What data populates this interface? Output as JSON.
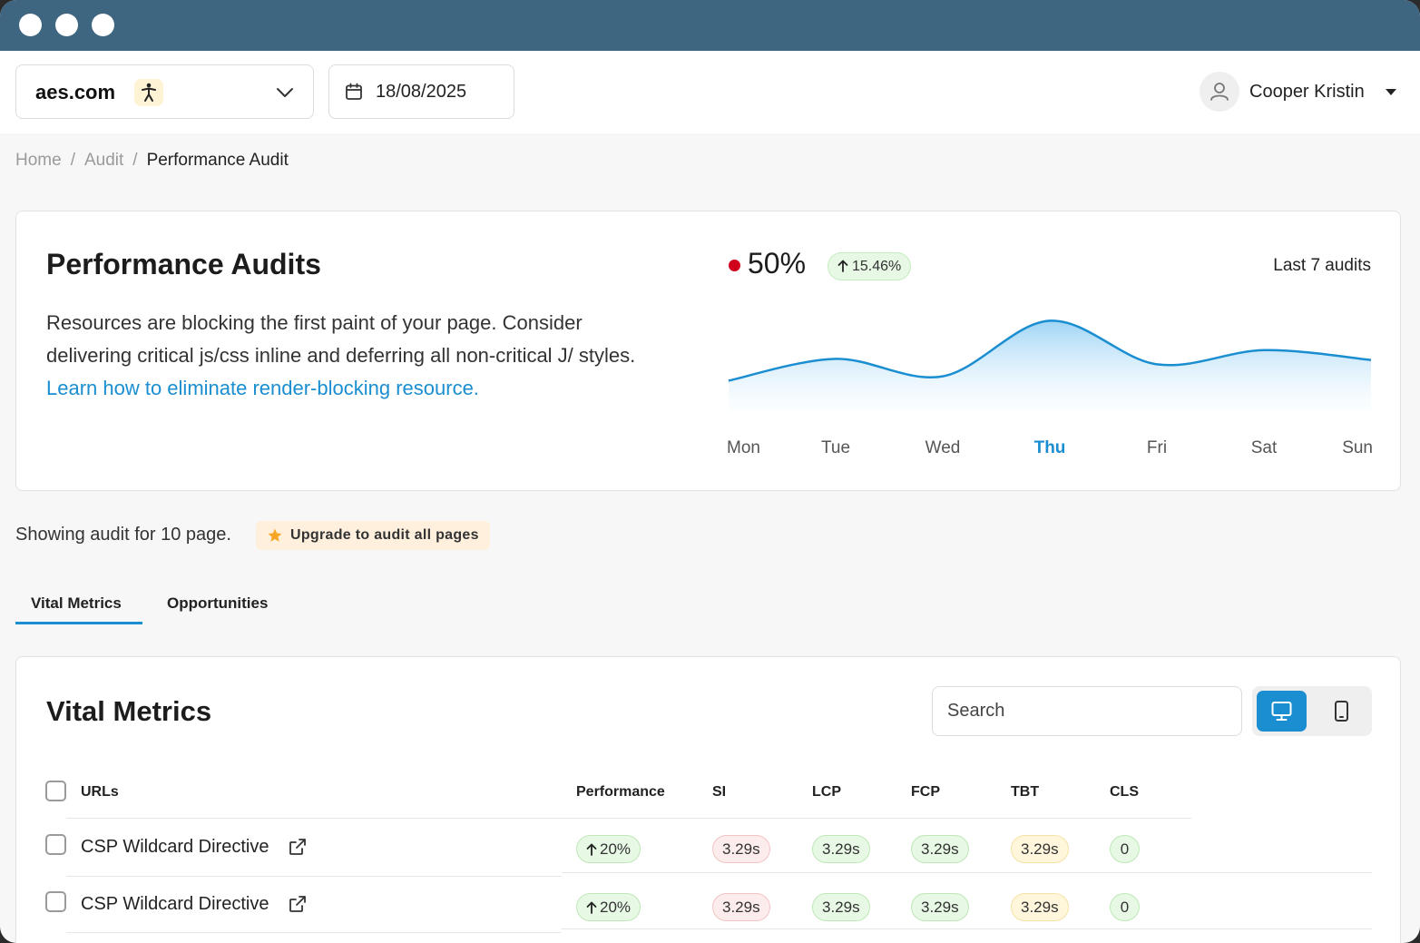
{
  "site_select": {
    "value": "aes.com",
    "badge_icon": "accessibility-icon"
  },
  "date_picker": {
    "value": "18/08/2025"
  },
  "user": {
    "name": "Cooper Kristin"
  },
  "breadcrumb": {
    "home": "Home",
    "audit": "Audit",
    "current": "Performance Audit",
    "separator": "/"
  },
  "performance_card": {
    "title": "Performance Audits",
    "description": "Resources are blocking the first paint of your page. Consider delivering critical js/css inline and deferring all non-critical J/ styles.",
    "link_text": "Learn how to eliminate render-blocking resource.",
    "score": "50%",
    "score_status_color": "#d0021b",
    "delta": "15.46%",
    "range_label": "Last 7 audits"
  },
  "chart_data": {
    "type": "area",
    "categories": [
      "Mon",
      "Tue",
      "Wed",
      "Thu",
      "Fri",
      "Sat",
      "Sun"
    ],
    "highlighted_category": "Thu",
    "series": [
      {
        "values": [
          28,
          48,
          32,
          83,
          43,
          56,
          47
        ]
      }
    ],
    "ylim": [
      0,
      100
    ],
    "grid": false,
    "line_color": "#1a8ed1"
  },
  "audit_info": {
    "showing_text": "Showing audit for 10 page.",
    "upgrade_label": "Upgrade to audit all pages"
  },
  "tabs": [
    {
      "label": "Vital Metrics",
      "active": true
    },
    {
      "label": "Opportunities",
      "active": false
    }
  ],
  "vital_metrics": {
    "title": "Vital Metrics",
    "search_placeholder": "Search",
    "view_toggle": {
      "desktop_icon": "desktop-icon",
      "mobile_icon": "mobile-icon",
      "selected": "desktop"
    },
    "columns": {
      "url": "URLs",
      "performance": "Performance",
      "si": "SI",
      "lcp": "LCP",
      "fcp": "FCP",
      "tbt": "TBT",
      "cls": "CLS"
    },
    "rows": [
      {
        "url": "CSP Wildcard Directive",
        "performance": "20%",
        "si": "3.29s",
        "lcp": "3.29s",
        "fcp": "3.29s",
        "tbt": "3.29s",
        "cls": "0"
      },
      {
        "url": "CSP Wildcard Directive",
        "performance": "20%",
        "si": "3.29s",
        "lcp": "3.29s",
        "fcp": "3.29s",
        "tbt": "3.29s",
        "cls": "0"
      }
    ]
  }
}
